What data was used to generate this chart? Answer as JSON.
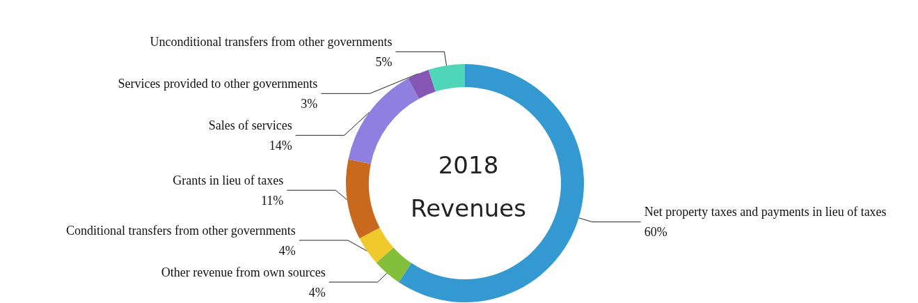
{
  "chart_data": {
    "type": "donut",
    "title": "2018\nRevenues",
    "categories": [
      "Net property taxes and payments in lieu of taxes",
      "Other revenue from own sources",
      "Conditional transfers from other governments",
      "Grants in lieu of taxes",
      "Sales of services",
      "Services provided to other governments",
      "Unconditional transfers from other governments"
    ],
    "values": [
      60,
      4,
      4,
      11,
      14,
      3,
      5
    ],
    "value_labels": [
      "60%",
      "4%",
      "4%",
      "11%",
      "14%",
      "3%",
      "5%"
    ],
    "colors": [
      "#3399d0",
      "#84bf3c",
      "#f0c92c",
      "#c8691e",
      "#8f7fe0",
      "#8556b4",
      "#4fd6b8"
    ],
    "legend": false
  }
}
